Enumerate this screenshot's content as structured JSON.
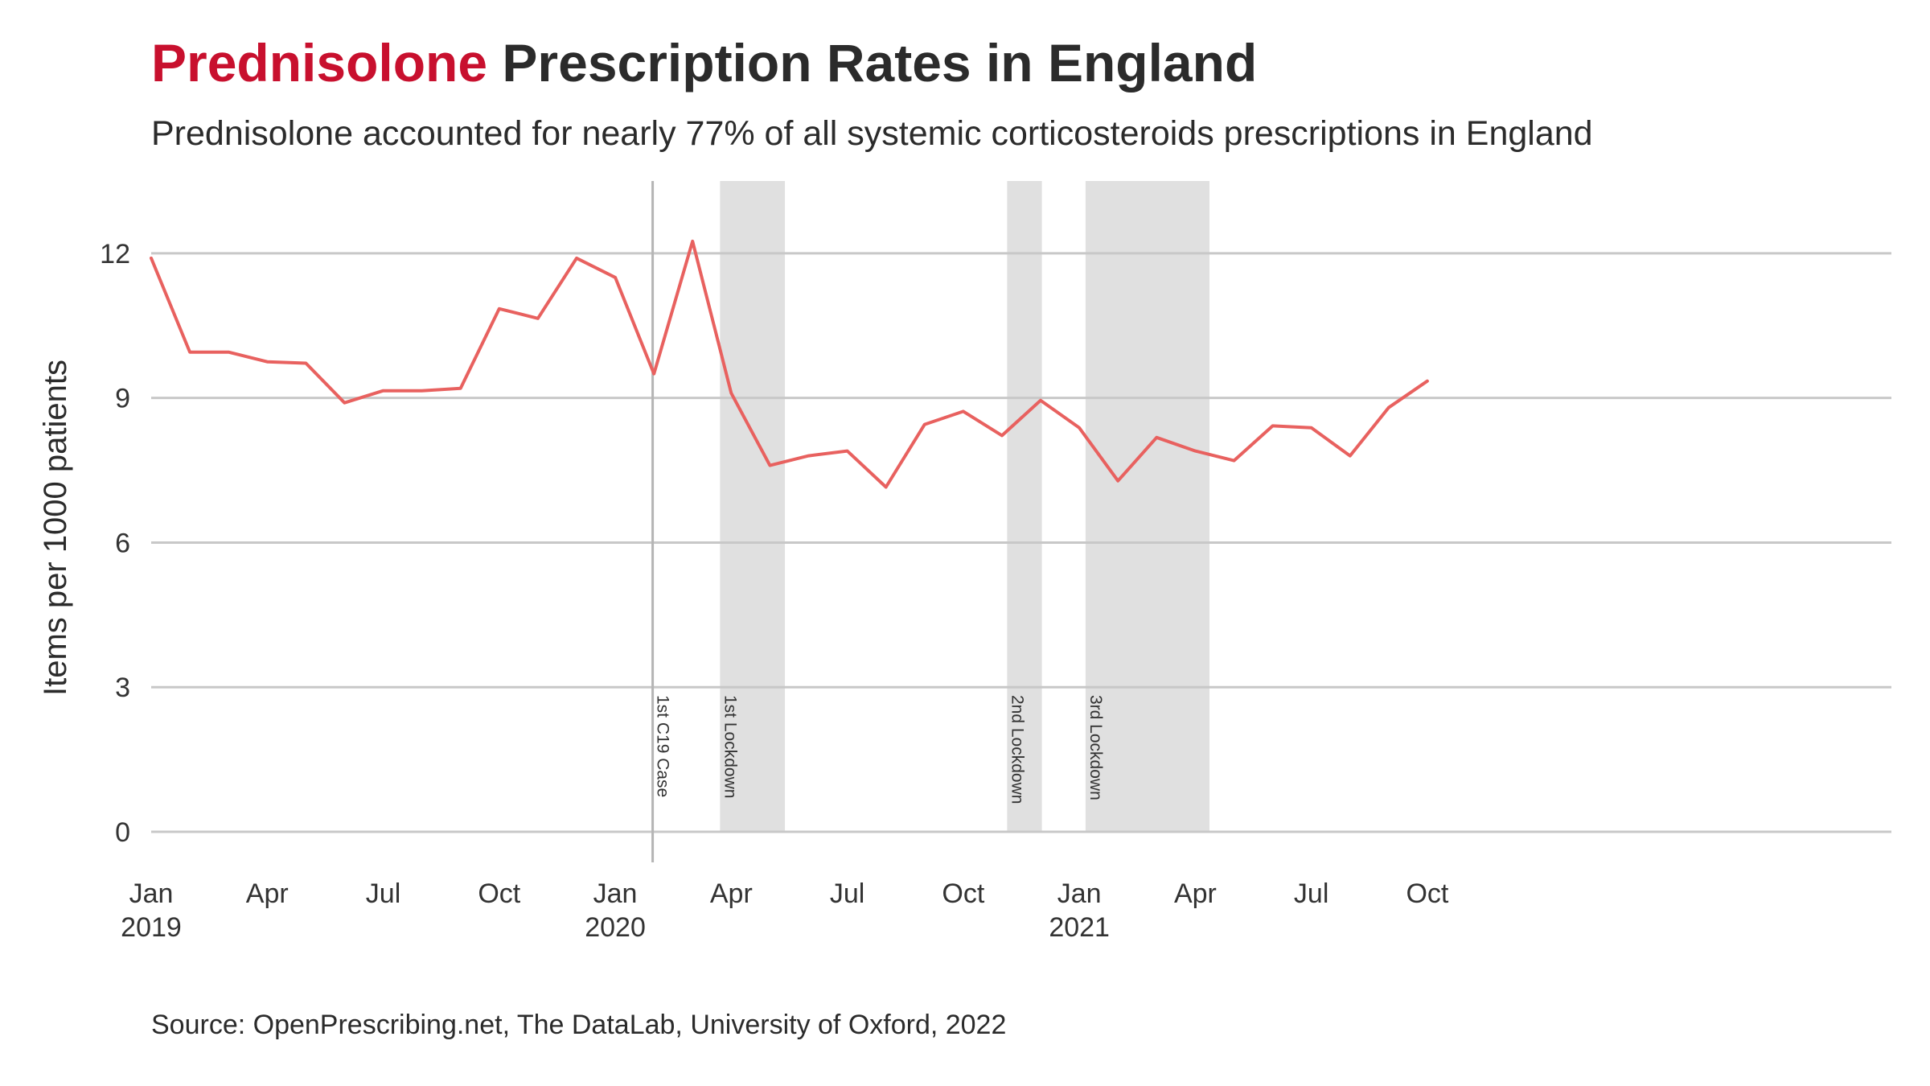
{
  "header": {
    "title_highlight": "Prednisolone",
    "title_rest": " Prescription Rates in England",
    "subtitle": "Prednisolone accounted for nearly 77% of all systemic corticosteroids prescriptions in England",
    "caption": "Source: OpenPrescribing.net, The DataLab, University of Oxford, 2022"
  },
  "colors": {
    "line": "#e8615f",
    "highlight": "#c8102e",
    "band": "#e0e0e0",
    "grid": "#c8c8c8"
  },
  "chart_data": {
    "type": "line",
    "title": "Prednisolone Prescription Rates in England",
    "subtitle": "Prednisolone accounted for nearly 77% of all systemic corticosteroids prescriptions in England",
    "xlabel": "",
    "ylabel": "Items per 1000 patients",
    "ylim": [
      0,
      13.5
    ],
    "xlim": [
      "2019-01",
      "2022-10"
    ],
    "grid": "horizontal",
    "y_ticks": [
      0,
      3,
      6,
      9,
      12
    ],
    "x_ticks": [
      {
        "date": "2019-01",
        "label": "Jan",
        "year": "2019"
      },
      {
        "date": "2019-04",
        "label": "Apr",
        "year": ""
      },
      {
        "date": "2019-07",
        "label": "Jul",
        "year": ""
      },
      {
        "date": "2019-10",
        "label": "Oct",
        "year": ""
      },
      {
        "date": "2020-01",
        "label": "Jan",
        "year": "2020"
      },
      {
        "date": "2020-04",
        "label": "Apr",
        "year": ""
      },
      {
        "date": "2020-07",
        "label": "Jul",
        "year": ""
      },
      {
        "date": "2020-10",
        "label": "Oct",
        "year": ""
      },
      {
        "date": "2021-01",
        "label": "Jan",
        "year": "2021"
      },
      {
        "date": "2021-04",
        "label": "Apr",
        "year": ""
      },
      {
        "date": "2021-07",
        "label": "Jul",
        "year": ""
      },
      {
        "date": "2021-10",
        "label": "Oct",
        "year": ""
      }
    ],
    "series": [
      {
        "name": "Prednisolone",
        "x": [
          "2019-01",
          "2019-02",
          "2019-03",
          "2019-04",
          "2019-05",
          "2019-06",
          "2019-07",
          "2019-08",
          "2019-09",
          "2019-10",
          "2019-11",
          "2019-12",
          "2020-01",
          "2020-02",
          "2020-03",
          "2020-04",
          "2020-05",
          "2020-06",
          "2020-07",
          "2020-08",
          "2020-09",
          "2020-10",
          "2020-11",
          "2020-12",
          "2021-01",
          "2021-02",
          "2021-03",
          "2021-04",
          "2021-05",
          "2021-06",
          "2021-07",
          "2021-08",
          "2021-09",
          "2021-10"
        ],
        "y": [
          11.9,
          9.95,
          9.95,
          9.75,
          9.72,
          8.9,
          9.15,
          9.15,
          9.2,
          10.85,
          10.65,
          11.9,
          11.5,
          9.5,
          12.25,
          9.1,
          7.6,
          7.8,
          7.9,
          7.15,
          8.45,
          8.72,
          8.22,
          8.95,
          8.38,
          7.28,
          8.18,
          7.9,
          7.7,
          8.42,
          8.38,
          7.8,
          8.8,
          9.35
        ]
      }
    ],
    "events": [
      {
        "label": "1st C19 Case",
        "type": "line",
        "date": "2020-01-31"
      },
      {
        "label": "1st Lockdown",
        "type": "band",
        "start": "2020-03-23",
        "end": "2020-05-13"
      },
      {
        "label": "2nd Lockdown",
        "type": "band",
        "start": "2020-11-05",
        "end": "2020-12-02"
      },
      {
        "label": "3rd Lockdown",
        "type": "band",
        "start": "2021-01-06",
        "end": "2021-04-12"
      }
    ]
  }
}
